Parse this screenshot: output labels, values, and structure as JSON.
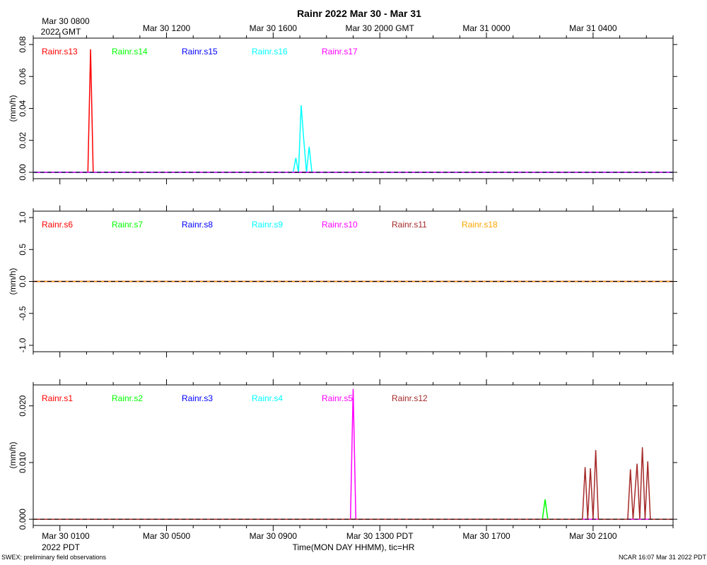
{
  "header": {
    "title": "Rainr 2022 Mar 30 - Mar 31",
    "gmt_first_line1": "Mar 30 0800",
    "gmt_first_line2": "2022 GMT",
    "gmt_labels": [
      "Mar 30 1200",
      "Mar 30 1600",
      "Mar 30 2000 GMT",
      "Mar 31 0000",
      "Mar 31 0400"
    ]
  },
  "footer": {
    "pdt_first_line1": "Mar 30 0100",
    "pdt_first_line2": "2022 PDT",
    "pdt_labels": [
      "Mar 30 0500",
      "Mar 30 0900",
      "Mar 30 1300 PDT",
      "Mar 30 1700",
      "Mar 30 2100"
    ],
    "xlabel": "Time(MON DAY HHMM), tic=HR",
    "left_note": "SWEX: preliminary field observations",
    "right_note": "NCAR 16:07 Mar 31 2022 PDT"
  },
  "colors": {
    "red": "#ff0000",
    "green": "#00ff00",
    "blue": "#0000ff",
    "cyan": "#00ffff",
    "magenta": "#ff00ff",
    "brown": "#a52a2a",
    "orange": "#ffa500"
  },
  "chart_data": [
    {
      "type": "line",
      "ylabel": "(mm/h)",
      "x_unit": "hours since Mar 30 0000 PDT",
      "xlim": [
        0,
        24
      ],
      "ylim": [
        -0.004,
        0.084
      ],
      "yticks": [
        0.0,
        0.02,
        0.04,
        0.06,
        0.08
      ],
      "ytick_labels": [
        "0.00",
        "0.02",
        "0.04",
        "0.06",
        "0.08"
      ],
      "series": [
        {
          "name": "Rainr.s13",
          "color": "#ff0000",
          "x": [
            0,
            2.05,
            2.15,
            2.25,
            24
          ],
          "y": [
            0,
            0,
            0.077,
            0,
            0
          ]
        },
        {
          "name": "Rainr.s14",
          "color": "#00ff00",
          "x": [
            0,
            24
          ],
          "y": [
            0,
            0
          ]
        },
        {
          "name": "Rainr.s15",
          "color": "#0000ff",
          "x": [
            0,
            24
          ],
          "y": [
            0,
            0
          ]
        },
        {
          "name": "Rainr.s16",
          "color": "#00ffff",
          "x": [
            0,
            9.75,
            9.85,
            9.95,
            10.05,
            10.15,
            10.25,
            10.35,
            10.45,
            24
          ],
          "y": [
            0,
            0,
            0.009,
            0,
            0.042,
            0.02,
            0,
            0.016,
            0,
            0
          ]
        },
        {
          "name": "Rainr.s17",
          "color": "#ff00ff",
          "x": [
            0,
            24
          ],
          "y": [
            0,
            0
          ]
        }
      ]
    },
    {
      "type": "line",
      "ylabel": "(mm/h)",
      "x_unit": "hours since Mar 30 0000 PDT",
      "xlim": [
        0,
        24
      ],
      "ylim": [
        -1.1,
        1.1
      ],
      "yticks": [
        -1.0,
        -0.5,
        0.0,
        0.5,
        1.0
      ],
      "ytick_labels": [
        "-1.0",
        "-0.5",
        "0.0",
        "0.5",
        "1.0"
      ],
      "series": [
        {
          "name": "Rainr.s6",
          "color": "#ff0000",
          "x": [
            0,
            24
          ],
          "y": [
            0,
            0
          ]
        },
        {
          "name": "Rainr.s7",
          "color": "#00ff00",
          "x": [
            0,
            24
          ],
          "y": [
            0,
            0
          ]
        },
        {
          "name": "Rainr.s8",
          "color": "#0000ff",
          "x": [
            0,
            24
          ],
          "y": [
            0,
            0
          ]
        },
        {
          "name": "Rainr.s9",
          "color": "#00ffff",
          "x": [
            0,
            24
          ],
          "y": [
            0,
            0
          ]
        },
        {
          "name": "Rainr.s10",
          "color": "#ff00ff",
          "x": [
            0,
            24
          ],
          "y": [
            0,
            0
          ]
        },
        {
          "name": "Rainr.s11",
          "color": "#a52a2a",
          "x": [
            0,
            24
          ],
          "y": [
            0,
            0
          ]
        },
        {
          "name": "Rainr.s18",
          "color": "#ffa500",
          "x": [
            0,
            24
          ],
          "y": [
            0,
            0
          ]
        }
      ]
    },
    {
      "type": "line",
      "ylabel": "(mm/h)",
      "x_unit": "hours since Mar 30 0000 PDT",
      "xlim": [
        0,
        24
      ],
      "ylim": [
        -0.0011,
        0.0237
      ],
      "yticks": [
        0.0,
        0.01,
        0.02
      ],
      "ytick_labels": [
        "0.000",
        "0.010",
        "0.020"
      ],
      "series": [
        {
          "name": "Rainr.s1",
          "color": "#ff0000",
          "x": [
            0,
            24
          ],
          "y": [
            0,
            0
          ]
        },
        {
          "name": "Rainr.s2",
          "color": "#00ff00",
          "x": [
            0,
            19.1,
            19.2,
            19.3,
            24
          ],
          "y": [
            0,
            0,
            0.0035,
            0,
            0
          ]
        },
        {
          "name": "Rainr.s3",
          "color": "#0000ff",
          "x": [
            0,
            24
          ],
          "y": [
            0,
            0
          ]
        },
        {
          "name": "Rainr.s4",
          "color": "#00ffff",
          "x": [
            0,
            24
          ],
          "y": [
            0,
            0
          ]
        },
        {
          "name": "Rainr.s5",
          "color": "#ff00ff",
          "x": [
            0,
            11.9,
            12.0,
            12.1,
            24
          ],
          "y": [
            0,
            0,
            0.023,
            0,
            0
          ]
        },
        {
          "name": "Rainr.s12",
          "color": "#a52a2a",
          "x": [
            0,
            20.6,
            20.7,
            20.8,
            20.9,
            21.0,
            21.1,
            21.2,
            22.3,
            22.4,
            22.5,
            22.65,
            22.75,
            22.85,
            22.95,
            23.05,
            23.15,
            23.25,
            24
          ],
          "y": [
            0,
            0,
            0.0092,
            0,
            0.009,
            0,
            0.0122,
            0,
            0,
            0.0088,
            0,
            0.0098,
            0,
            0.0127,
            0,
            0.0102,
            0,
            0,
            0
          ]
        }
      ]
    }
  ]
}
